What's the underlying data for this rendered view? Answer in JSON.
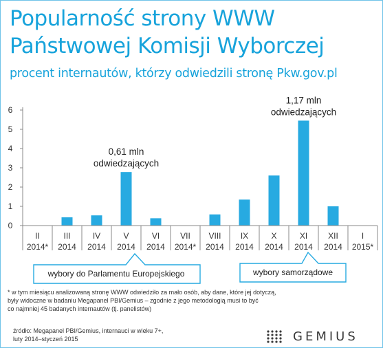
{
  "title_line1": "Popularność strony WWW",
  "title_line2": "Państwowej Komisji Wyborczej",
  "subtitle": "procent internautów, którzy odwiedzili stronę Pkw.gov.pl",
  "chart_data": {
    "type": "bar",
    "categories": [
      [
        "II",
        "2014*"
      ],
      [
        "III",
        "2014"
      ],
      [
        "IV",
        "2014"
      ],
      [
        "V",
        "2014"
      ],
      [
        "VI",
        "2014"
      ],
      [
        "VII",
        "2014*"
      ],
      [
        "VIII",
        "2014"
      ],
      [
        "IX",
        "2014"
      ],
      [
        "X",
        "2014"
      ],
      [
        "XI",
        "2014"
      ],
      [
        "XII",
        "2014"
      ],
      [
        "I",
        "2015*"
      ]
    ],
    "values": [
      null,
      0.43,
      0.53,
      2.78,
      0.38,
      null,
      0.58,
      1.35,
      2.6,
      5.45,
      1.0,
      null
    ],
    "ylim": [
      0,
      6
    ],
    "yticks": [
      0,
      1,
      2,
      3,
      4,
      5,
      6
    ],
    "grid": false,
    "bar_color": "#27aae1",
    "annotations": [
      {
        "category_index": 3,
        "lines": [
          "0,61 mln",
          "odwiedzających"
        ]
      },
      {
        "category_index": 9,
        "lines": [
          "1,17 mln",
          "odwiedzających"
        ]
      }
    ]
  },
  "callouts": {
    "european": "wybory do Parlamentu Europejskiego",
    "local": "wybory samorządowe"
  },
  "footnote_lines": [
    "* w tym miesiącu analizowaną stronę WWW odwiedziło za mało osób, aby dane, które jej dotyczą,",
    "  były widoczne w badaniu Megapanel PBI/Gemius – zgodnie z jego metodologią musi to być",
    "  co najmniej 45 badanych internautów (tj. panelistów)"
  ],
  "source_lines": [
    "źródło: Megapanel PBI/Gemius, internauci w wieku 7+,",
    "luty 2014–styczeń 2015"
  ],
  "logo": {
    "text": "GEMIUS",
    "color": "#3a3a3a"
  }
}
